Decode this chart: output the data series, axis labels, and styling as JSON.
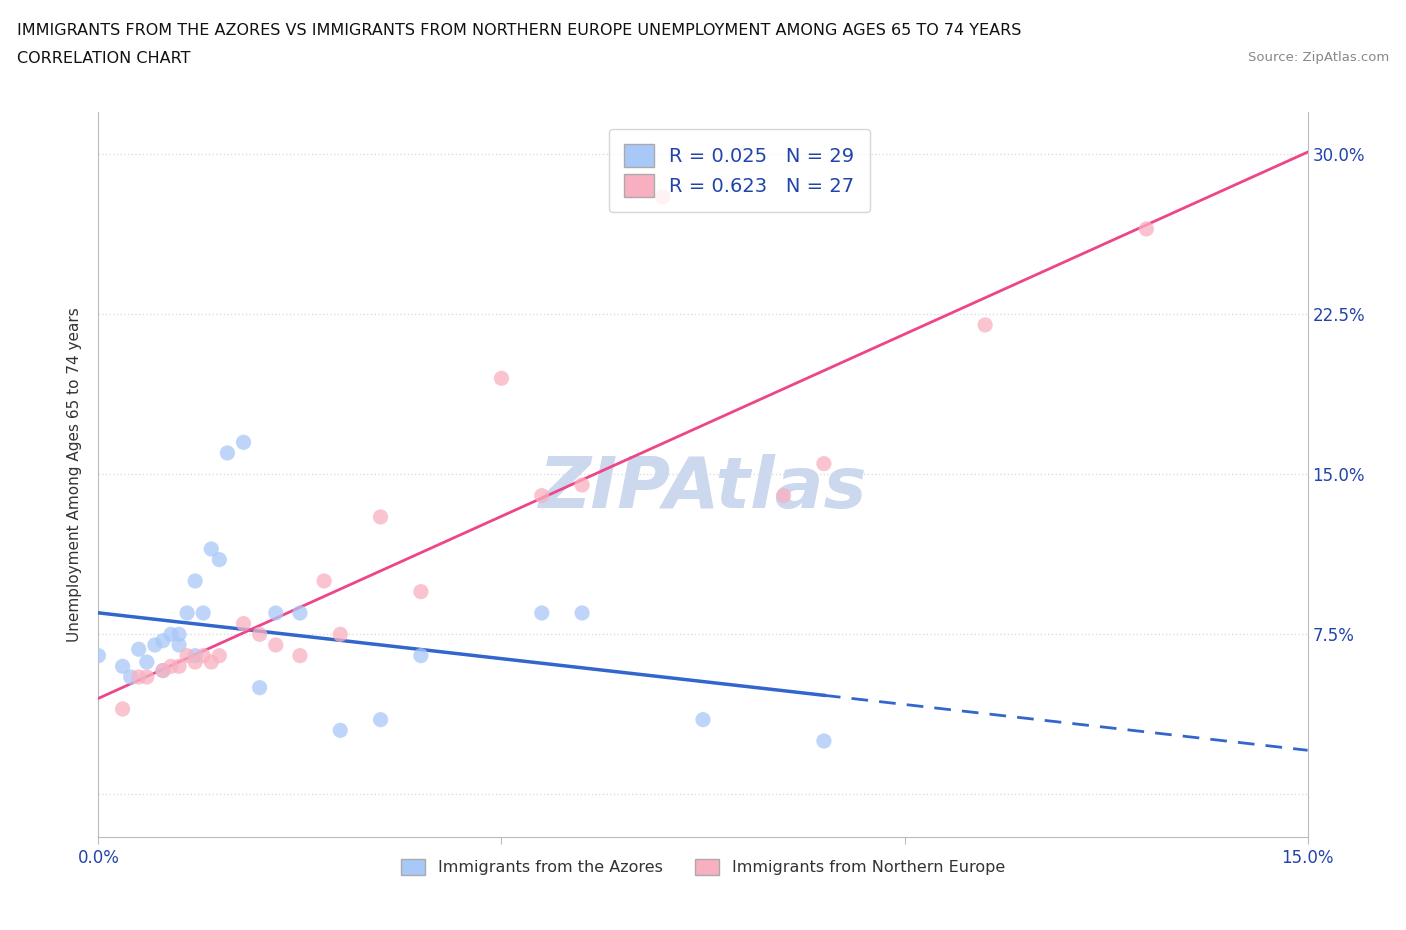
{
  "title_line1": "IMMIGRANTS FROM THE AZORES VS IMMIGRANTS FROM NORTHERN EUROPE UNEMPLOYMENT AMONG AGES 65 TO 74 YEARS",
  "title_line2": "CORRELATION CHART",
  "source_text": "Source: ZipAtlas.com",
  "ylabel": "Unemployment Among Ages 65 to 74 years",
  "xlim": [
    0.0,
    0.15
  ],
  "ylim": [
    -0.02,
    0.32
  ],
  "xtick_pos": [
    0.0,
    0.05,
    0.1,
    0.15
  ],
  "xtick_labels": [
    "0.0%",
    "",
    "",
    "15.0%"
  ],
  "ytick_positions": [
    0.0,
    0.075,
    0.15,
    0.225,
    0.3
  ],
  "ytick_labels_right": [
    "",
    "7.5%",
    "15.0%",
    "22.5%",
    "30.0%"
  ],
  "color_azores": "#a8c8f8",
  "color_northern": "#f8b0c0",
  "line_color_azores": "#3366cc",
  "line_color_northern": "#ee4488",
  "legend_label_azores": "R = 0.025   N = 29",
  "legend_label_northern": "R = 0.623   N = 27",
  "bottom_legend_azores": "Immigrants from the Azores",
  "bottom_legend_northern": "Immigrants from Northern Europe",
  "background_color": "#ffffff",
  "watermark_text": "ZIPAtlas",
  "watermark_color": "#ccd8ee",
  "grid_color": "#dddddd",
  "azores_x": [
    0.0,
    0.003,
    0.004,
    0.005,
    0.006,
    0.007,
    0.008,
    0.008,
    0.009,
    0.01,
    0.01,
    0.011,
    0.012,
    0.012,
    0.013,
    0.014,
    0.015,
    0.016,
    0.018,
    0.02,
    0.022,
    0.025,
    0.03,
    0.035,
    0.04,
    0.055,
    0.06,
    0.075,
    0.09
  ],
  "azores_y": [
    0.065,
    0.06,
    0.055,
    0.068,
    0.062,
    0.07,
    0.058,
    0.072,
    0.075,
    0.07,
    0.075,
    0.085,
    0.1,
    0.065,
    0.085,
    0.115,
    0.11,
    0.16,
    0.165,
    0.05,
    0.085,
    0.085,
    0.03,
    0.035,
    0.065,
    0.085,
    0.085,
    0.035,
    0.025
  ],
  "northern_x": [
    0.003,
    0.005,
    0.006,
    0.008,
    0.009,
    0.01,
    0.011,
    0.012,
    0.013,
    0.014,
    0.015,
    0.018,
    0.02,
    0.022,
    0.025,
    0.028,
    0.03,
    0.035,
    0.04,
    0.05,
    0.055,
    0.06,
    0.07,
    0.085,
    0.09,
    0.11,
    0.13
  ],
  "northern_y": [
    0.04,
    0.055,
    0.055,
    0.058,
    0.06,
    0.06,
    0.065,
    0.062,
    0.065,
    0.062,
    0.065,
    0.08,
    0.075,
    0.07,
    0.065,
    0.1,
    0.075,
    0.13,
    0.095,
    0.195,
    0.14,
    0.145,
    0.28,
    0.14,
    0.155,
    0.22,
    0.265
  ]
}
